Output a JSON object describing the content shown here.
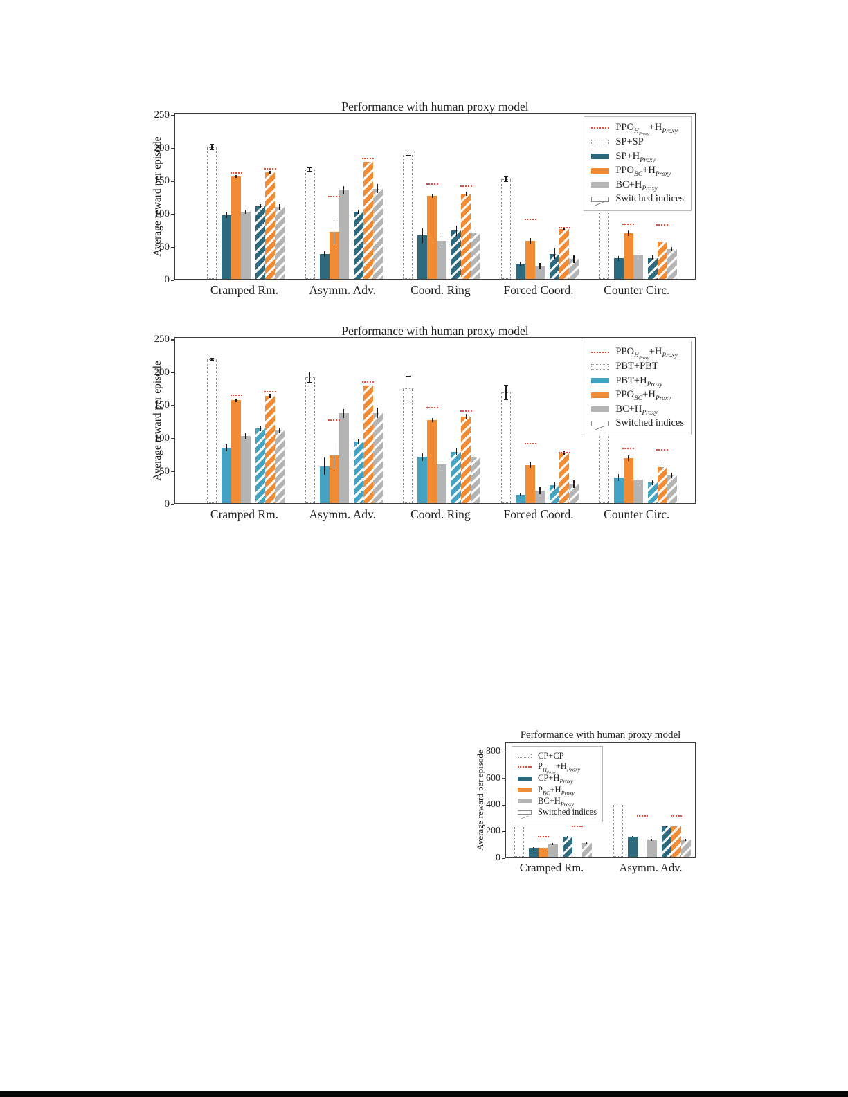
{
  "page": {
    "background": "#ffffff",
    "bottom_rule_color": "#060606"
  },
  "colors": {
    "teal": "#2d6a7e",
    "light_blue": "#44a3c3",
    "orange": "#f18c34",
    "gray": "#b4b4b4",
    "ppo_proxy_red": "#ef4a39",
    "outline_bar_border": "#8f8f8f",
    "plot_border": "#3d3d3d"
  },
  "charts": [
    {
      "name": "sp-figure",
      "title": "Performance with human proxy model",
      "ylabel": "Average reward per episode",
      "yticks": [
        0,
        50,
        100,
        150,
        200,
        250
      ],
      "legend": [
        {
          "swatch": "red-dotted",
          "label": "PPO_{H_{Proxy}}+H_{Proxy}"
        },
        {
          "swatch": "outline",
          "label": "SP+SP"
        },
        {
          "swatch": "teal",
          "label": "SP+H_{Proxy}"
        },
        {
          "swatch": "orange",
          "label": "PPO_{BC}+H_{Proxy}"
        },
        {
          "swatch": "gray",
          "label": "BC+H_{Proxy}"
        },
        {
          "swatch": "hatch",
          "label": "Switched indices"
        }
      ],
      "chart_data": {
        "type": "bar",
        "ylim": [
          0,
          250
        ],
        "categories": [
          "Cramped Rm.",
          "Asymm. Adv.",
          "Coord. Ring",
          "Forced Coord.",
          "Counter Circ."
        ],
        "series": [
          {
            "name": "SP+SP",
            "role": "outline",
            "values": [
              200,
              166,
              190,
              151,
              205
            ],
            "err": [
              4,
              3,
              3,
              4,
              0
            ]
          },
          {
            "name": "SP+H_{Proxy}",
            "role": "teal",
            "values": [
              97,
              38,
              66,
              23,
              31
            ],
            "err": [
              5,
              4,
              11,
              3,
              4
            ]
          },
          {
            "name": "PPO_{BC}+H_{Proxy}",
            "role": "orange",
            "values": [
              155,
              71,
              126,
              58,
              69
            ],
            "err": [
              2,
              18,
              3,
              4,
              4
            ]
          },
          {
            "name": "BC+H_{Proxy}",
            "role": "gray",
            "values": [
              102,
              135,
              58,
              20,
              37
            ],
            "err": [
              3,
              6,
              5,
              4,
              5
            ]
          },
          {
            "name": "SP+H_{Proxy} switched indices",
            "role": "teal-hatch",
            "values": [
              110,
              102,
              73,
              38,
              32
            ],
            "err": [
              3,
              3,
              8,
              8,
              4
            ]
          },
          {
            "name": "PPO_{BC}+H_{Proxy} switched indices",
            "role": "orange-hatch",
            "values": [
              162,
              177,
              129,
              76,
              57
            ],
            "err": [
              2,
              3,
              3,
              3,
              3
            ]
          },
          {
            "name": "BC+H_{Proxy} switched indices",
            "role": "gray-hatch",
            "values": [
              109,
              137,
              69,
              30,
              45
            ],
            "err": [
              4,
              7,
              4,
              6,
              3
            ]
          }
        ],
        "ppo_marker_values": {
          "name": "PPO_{H_{Proxy}}+H_{Proxy}",
          "index0": [
            162,
            126,
            145,
            91,
            84
          ],
          "index1": [
            168,
            184,
            142,
            79,
            83
          ]
        }
      }
    },
    {
      "name": "pbt-figure",
      "title": "Performance with human proxy model",
      "ylabel": "Average reward per episode",
      "yticks": [
        0,
        50,
        100,
        150,
        200,
        250
      ],
      "legend": [
        {
          "swatch": "red-dotted",
          "label": "PPO_{H_{Proxy}}+H_{Proxy}"
        },
        {
          "swatch": "outline",
          "label": "PBT+PBT"
        },
        {
          "swatch": "lightblue",
          "label": "PBT+H_{Proxy}"
        },
        {
          "swatch": "orange",
          "label": "PPO_{BC}+H_{Proxy}"
        },
        {
          "swatch": "gray",
          "label": "BC+H_{Proxy}"
        },
        {
          "swatch": "hatch",
          "label": "Switched indices"
        }
      ],
      "chart_data": {
        "type": "bar",
        "ylim": [
          0,
          250
        ],
        "categories": [
          "Cramped Rm.",
          "Asymm. Adv.",
          "Coord. Ring",
          "Forced Coord.",
          "Counter Circ."
        ],
        "series": [
          {
            "name": "PBT+PBT",
            "role": "outline",
            "values": [
              218,
              191,
              174,
              168,
              230
            ],
            "err": [
              2,
              8,
              19,
              11,
              0
            ]
          },
          {
            "name": "PBT+H_{Proxy}",
            "role": "lightblue",
            "values": [
              84,
              56,
              70,
              13,
              39
            ],
            "err": [
              5,
              13,
              6,
              3,
              5
            ]
          },
          {
            "name": "PPO_{BC}+H_{Proxy}",
            "role": "orange",
            "values": [
              156,
              72,
              126,
              58,
              68
            ],
            "err": [
              3,
              19,
              3,
              4,
              4
            ]
          },
          {
            "name": "BC+H_{Proxy}",
            "role": "gray",
            "values": [
              102,
              136,
              59,
              19,
              36
            ],
            "err": [
              4,
              7,
              5,
              5,
              5
            ]
          },
          {
            "name": "PBT+H_{Proxy} switched indices",
            "role": "lightblue-hatch",
            "values": [
              113,
              93,
              78,
              27,
              31
            ],
            "err": [
              4,
              4,
              5,
              6,
              4
            ]
          },
          {
            "name": "PPO_{BC}+H_{Proxy} switched indices",
            "role": "orange-hatch",
            "values": [
              163,
              179,
              131,
              76,
              55
            ],
            "err": [
              3,
              4,
              4,
              3,
              4
            ]
          },
          {
            "name": "BC+H_{Proxy} switched indices",
            "role": "gray-hatch",
            "values": [
              110,
              137,
              69,
              29,
              42
            ],
            "err": [
              4,
              8,
              4,
              6,
              4
            ]
          }
        ],
        "ppo_marker_values": {
          "name": "PPO_{H_{Proxy}}+H_{Proxy}",
          "index0": [
            165,
            127,
            146,
            91,
            84
          ],
          "index1": [
            170,
            185,
            141,
            78,
            82
          ]
        }
      }
    },
    {
      "name": "planning-figure",
      "title": "Performance with human proxy model",
      "ylabel": "Average reward per episode",
      "yticks": [
        0,
        200,
        400,
        600,
        800
      ],
      "legend": [
        {
          "swatch": "outline",
          "label": "CP+CP"
        },
        {
          "swatch": "red-dotted",
          "label": "P_{H_{Proxy}}+H_{Proxy}"
        },
        {
          "swatch": "teal",
          "label": "CP+H_{Proxy}"
        },
        {
          "swatch": "orange",
          "label": "P_{BC}+H_{Proxy}"
        },
        {
          "swatch": "gray",
          "label": "BC+H_{Proxy}"
        },
        {
          "swatch": "hatch",
          "label": "Switched indices"
        }
      ],
      "chart_data": {
        "type": "bar",
        "ylim": [
          0,
          800
        ],
        "categories": [
          "Cramped Rm.",
          "Asymm. Adv."
        ],
        "series": [
          {
            "name": "CP+CP",
            "role": "outline",
            "values": [
              235,
              400
            ],
            "err": [
              0,
              0
            ]
          },
          {
            "name": "CP+H_{Proxy}",
            "role": "teal",
            "values": [
              69,
              150
            ],
            "err": [
              3,
              4
            ]
          },
          {
            "name": "P_{BC}+H_{Proxy}",
            "role": "orange",
            "values": [
              69,
              0
            ],
            "err": [
              3,
              0
            ]
          },
          {
            "name": "BC+H_{Proxy}",
            "role": "gray",
            "values": [
              97,
              130
            ],
            "err": [
              8,
              8
            ]
          },
          {
            "name": "CP+H_{Proxy} switched indices",
            "role": "teal-hatch",
            "values": [
              151,
              228
            ],
            "err": [
              5,
              6
            ]
          },
          {
            "name": "P_{BC}+H_{Proxy} switched indices",
            "role": "orange-hatch",
            "values": [
              0,
              228
            ],
            "err": [
              0,
              6
            ]
          },
          {
            "name": "BC+H_{Proxy} switched indices",
            "role": "gray-hatch",
            "values": [
              103,
              130
            ],
            "err": [
              6,
              8
            ]
          }
        ],
        "ppo_marker_values": {
          "name": "P_{H_{Proxy}}+H_{Proxy}",
          "index0": [
            155,
            315
          ],
          "index1": [
            236,
            315
          ]
        }
      }
    }
  ]
}
